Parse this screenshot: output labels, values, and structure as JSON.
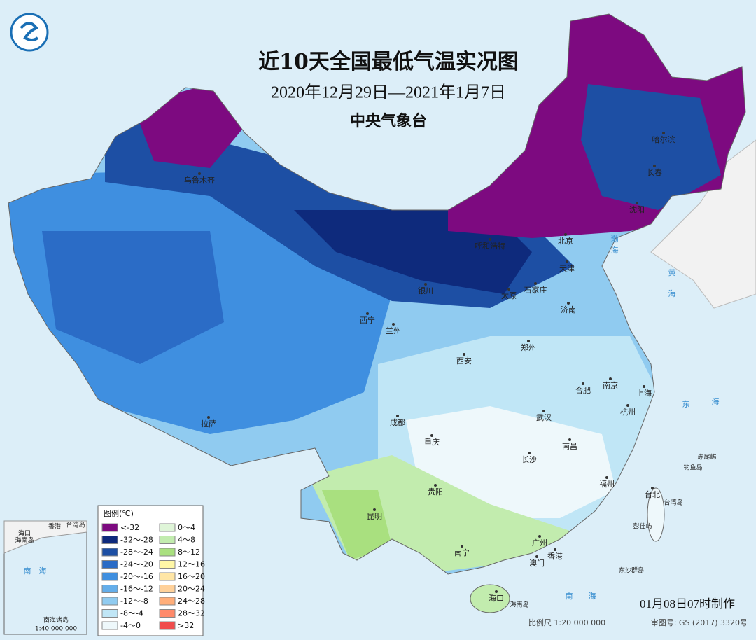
{
  "header": {
    "title": "近10天全国最低气温实况图",
    "date_range": "2020年12月29日—2021年1月7日",
    "agency": "中央气象台"
  },
  "legend": {
    "title": "图例(℃)",
    "items": [
      {
        "label": "<-32",
        "color": "#7d0a80"
      },
      {
        "label": "-32～-28",
        "color": "#0e2a7c"
      },
      {
        "label": "-28～-24",
        "color": "#1d4fa4"
      },
      {
        "label": "-24～-20",
        "color": "#2b6cc6"
      },
      {
        "label": "-20～-16",
        "color": "#3f8fe0"
      },
      {
        "label": "-16～-12",
        "color": "#64aeea"
      },
      {
        "label": "-12～-8",
        "color": "#90cbf0"
      },
      {
        "label": "-8～-4",
        "color": "#c0e6f6"
      },
      {
        "label": "-4～0",
        "color": "#eef8fb"
      },
      {
        "label": "0～4",
        "color": "#dff5d8"
      },
      {
        "label": "4～8",
        "color": "#c2ecae"
      },
      {
        "label": "8～12",
        "color": "#a9e07f"
      },
      {
        "label": "12～16",
        "color": "#fff7a6"
      },
      {
        "label": "16～20",
        "color": "#ffe6a6"
      },
      {
        "label": "20～24",
        "color": "#ffd19a"
      },
      {
        "label": "24～28",
        "color": "#ffae7a"
      },
      {
        "label": "28～32",
        "color": "#ff8a6a"
      },
      {
        "label": ">32",
        "color": "#f04c4c"
      }
    ]
  },
  "cities": [
    "乌鲁木齐",
    "哈尔滨",
    "长春",
    "沈阳",
    "呼和浩特",
    "北京",
    "天津",
    "石家庄",
    "太原",
    "银川",
    "济南",
    "西宁",
    "兰州",
    "郑州",
    "西安",
    "合肥",
    "南京",
    "上海",
    "杭州",
    "拉萨",
    "成都",
    "武汉",
    "重庆",
    "南昌",
    "长沙",
    "福州",
    "贵阳",
    "台北",
    "昆明",
    "广州",
    "南宁",
    "澳门",
    "香港",
    "海口"
  ],
  "places": [
    "渤",
    "海",
    "黄",
    "海",
    "东",
    "海",
    "南",
    "海",
    "台湾岛",
    "赤尾屿",
    "钓鱼岛",
    "彭佳屿",
    "东沙群岛",
    "海南岛"
  ],
  "inset": {
    "title": "南海诸岛",
    "scale": "1:40 000 000",
    "labels": [
      "南　海",
      "海南岛",
      "海口",
      "香港",
      "台湾岛"
    ]
  },
  "footer": {
    "made": "01月08日07时制作",
    "scale": "比例尺 1:20 000 000",
    "approval": "审图号: GS (2017) 3320号"
  }
}
